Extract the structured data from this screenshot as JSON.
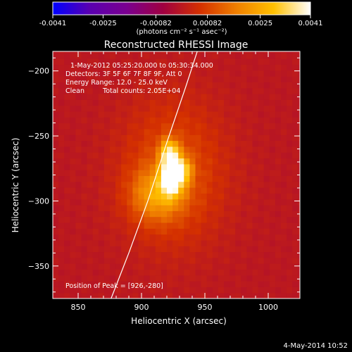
{
  "chart_data": {
    "type": "heatmap",
    "title": "Reconstructed RHESSI Image",
    "xlabel": "Heliocentric X (arcsec)",
    "ylabel": "Heliocentric Y (arcsec)",
    "xlim": [
      830,
      1025
    ],
    "ylim": [
      -375,
      -185
    ],
    "x_ticks": [
      850,
      900,
      950,
      1000
    ],
    "y_ticks": [
      -200,
      -250,
      -300,
      -350
    ],
    "colorbar": {
      "label": "(photons cm⁻² s⁻¹ asec⁻²)",
      "min": -0.0041,
      "max": 0.0041,
      "tick_labels": [
        "-0.0041",
        "-0.0025",
        "-0.00082",
        "0.00082",
        "0.0025",
        "0.0041"
      ],
      "tick_values": [
        -0.0041,
        -0.0025,
        -0.00082,
        0.00082,
        0.0025,
        0.0041
      ],
      "colormap": [
        "#0000ff",
        "#5a00b0",
        "#7a0090",
        "#a00040",
        "#d43000",
        "#f08000",
        "#ffc000",
        "#ffffff"
      ]
    },
    "annotations": {
      "time_range": "1-May-2012 05:25:20.000 to 05:30:34.000",
      "detectors": "Detectors: 3F 5F 6F 7F 8F 9F, Att 0",
      "energy": "Energy Range: 12.0 - 25.0 keV",
      "method": "Clean",
      "counts": "Total counts: 2.05E+04",
      "peak": "Position of Peak = [926,-280]"
    },
    "peak": {
      "x": 926,
      "y": -280,
      "value": 0.0041
    },
    "source_blobs": [
      {
        "x": 924,
        "y": -280,
        "sx": 6,
        "sy": 10,
        "amp": 0.0041
      },
      {
        "x": 922,
        "y": -262,
        "sx": 5,
        "sy": 7,
        "amp": 0.0024
      },
      {
        "x": 933,
        "y": -276,
        "sx": 5,
        "sy": 7,
        "amp": 0.0017
      },
      {
        "x": 912,
        "y": -295,
        "sx": 14,
        "sy": 14,
        "amp": 0.0017
      },
      {
        "x": 925,
        "y": -278,
        "sx": 28,
        "sy": 38,
        "amp": 0.0011
      }
    ],
    "limb_curve": [
      {
        "x": 876,
        "y": -375
      },
      {
        "x": 890,
        "y": -340
      },
      {
        "x": 905,
        "y": -300
      },
      {
        "x": 920,
        "y": -255
      },
      {
        "x": 935,
        "y": -212
      },
      {
        "x": 944,
        "y": -185
      }
    ]
  },
  "footer": {
    "timestamp": "4-May-2014 10:52"
  }
}
